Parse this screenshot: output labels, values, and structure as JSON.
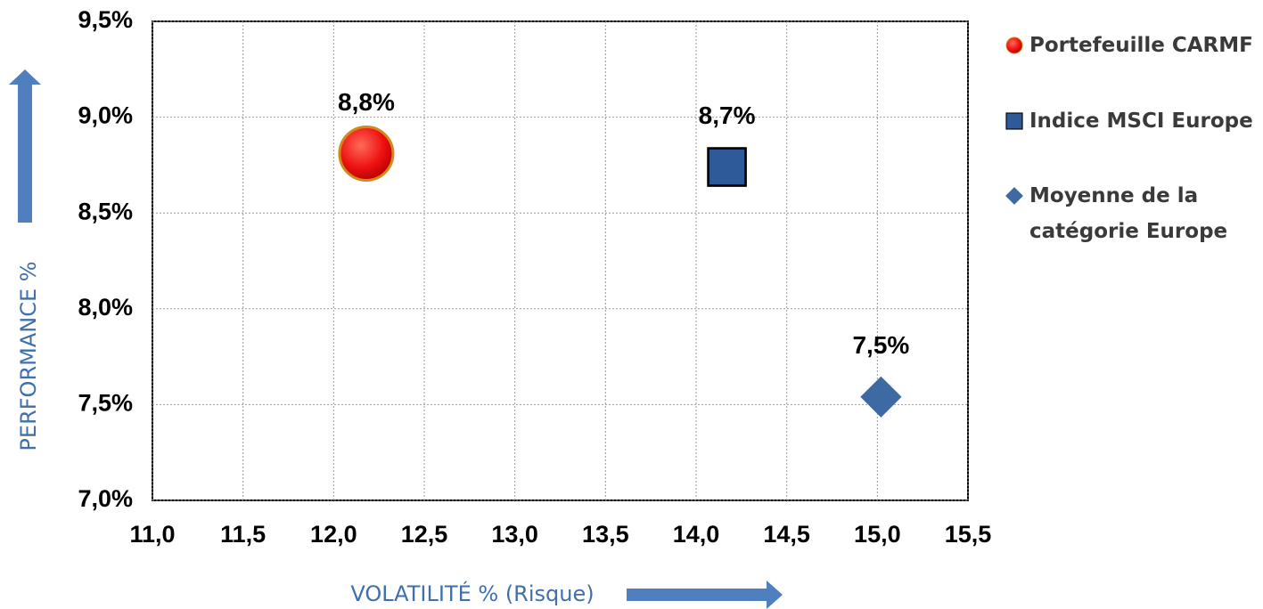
{
  "chart_data": {
    "type": "scatter",
    "xlabel": "VOLATILITÉ  % (Risque)",
    "ylabel": "PERFORMANCE  %",
    "series": [
      {
        "name": "Portefeuille CARMF",
        "color": "#ee1c1c",
        "marker": "circle",
        "x": [
          12.18
        ],
        "values": [
          8.81
        ],
        "value_labels": [
          "8,8%"
        ]
      },
      {
        "name": "Indice MSCI Europe",
        "color": "#2f5a9a",
        "marker": "square",
        "x": [
          14.17
        ],
        "values": [
          8.74
        ],
        "value_labels": [
          "8,7%"
        ]
      },
      {
        "name": "Moyenne de la catégorie Europe",
        "color": "#3d6aa3",
        "marker": "diamond",
        "x": [
          15.02
        ],
        "values": [
          7.54
        ],
        "value_labels": [
          "7,5%"
        ]
      }
    ],
    "xlim": [
      11.0,
      15.5
    ],
    "xticks": [
      {
        "value": 11.0,
        "label": "11,0"
      },
      {
        "value": 11.5,
        "label": "11,5"
      },
      {
        "value": 12.0,
        "label": "12,0"
      },
      {
        "value": 12.5,
        "label": "12,5"
      },
      {
        "value": 13.0,
        "label": "13,0"
      },
      {
        "value": 13.5,
        "label": "13,5"
      },
      {
        "value": 14.0,
        "label": "14,0"
      },
      {
        "value": 14.5,
        "label": "14,5"
      },
      {
        "value": 15.0,
        "label": "15,0"
      },
      {
        "value": 15.5,
        "label": "15,5"
      }
    ],
    "ylim": [
      7.0,
      9.5
    ],
    "yticks": [
      {
        "value": 7.0,
        "label": "7,0%"
      },
      {
        "value": 7.5,
        "label": "7,5%"
      },
      {
        "value": 8.0,
        "label": "8,0%"
      },
      {
        "value": 8.5,
        "label": "8,5%"
      },
      {
        "value": 9.0,
        "label": "9,0%"
      },
      {
        "value": 9.5,
        "label": "9,5%"
      }
    ],
    "grid": true
  }
}
